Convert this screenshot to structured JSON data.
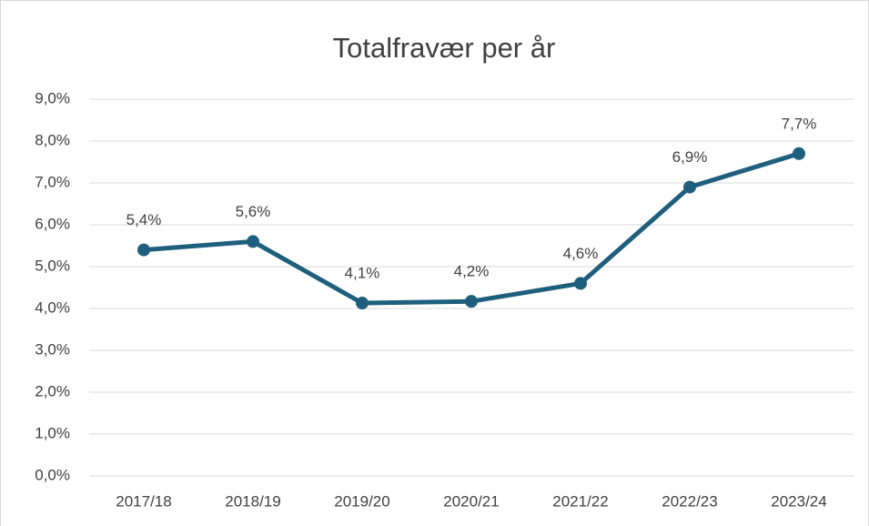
{
  "chart_data": {
    "type": "line",
    "title": "Totalfravær per år",
    "categories": [
      "2017/18",
      "2018/19",
      "2019/20",
      "2020/21",
      "2021/22",
      "2022/23",
      "2023/24"
    ],
    "series": [
      {
        "color": "#1f5f7e",
        "values": [
          5.4,
          5.6,
          4.13,
          4.17,
          4.6,
          6.9,
          7.7
        ],
        "value_labels": [
          "5,4%",
          "5,6%",
          "4,1%",
          "4,2%",
          "4,6%",
          "6,9%",
          "7,7%"
        ]
      }
    ],
    "ylim": [
      0,
      9
    ],
    "yticks": [
      {
        "value": 0,
        "label": "0,0%"
      },
      {
        "value": 1,
        "label": "1,0%"
      },
      {
        "value": 2,
        "label": "2,0%"
      },
      {
        "value": 3,
        "label": "3,0%"
      },
      {
        "value": 4,
        "label": "4,0%"
      },
      {
        "value": 5,
        "label": "5,0%"
      },
      {
        "value": 6,
        "label": "6,0%"
      },
      {
        "value": 7,
        "label": "7,0%"
      },
      {
        "value": 8,
        "label": "8,0%"
      },
      {
        "value": 9,
        "label": "9,0%"
      }
    ],
    "grid": true
  }
}
